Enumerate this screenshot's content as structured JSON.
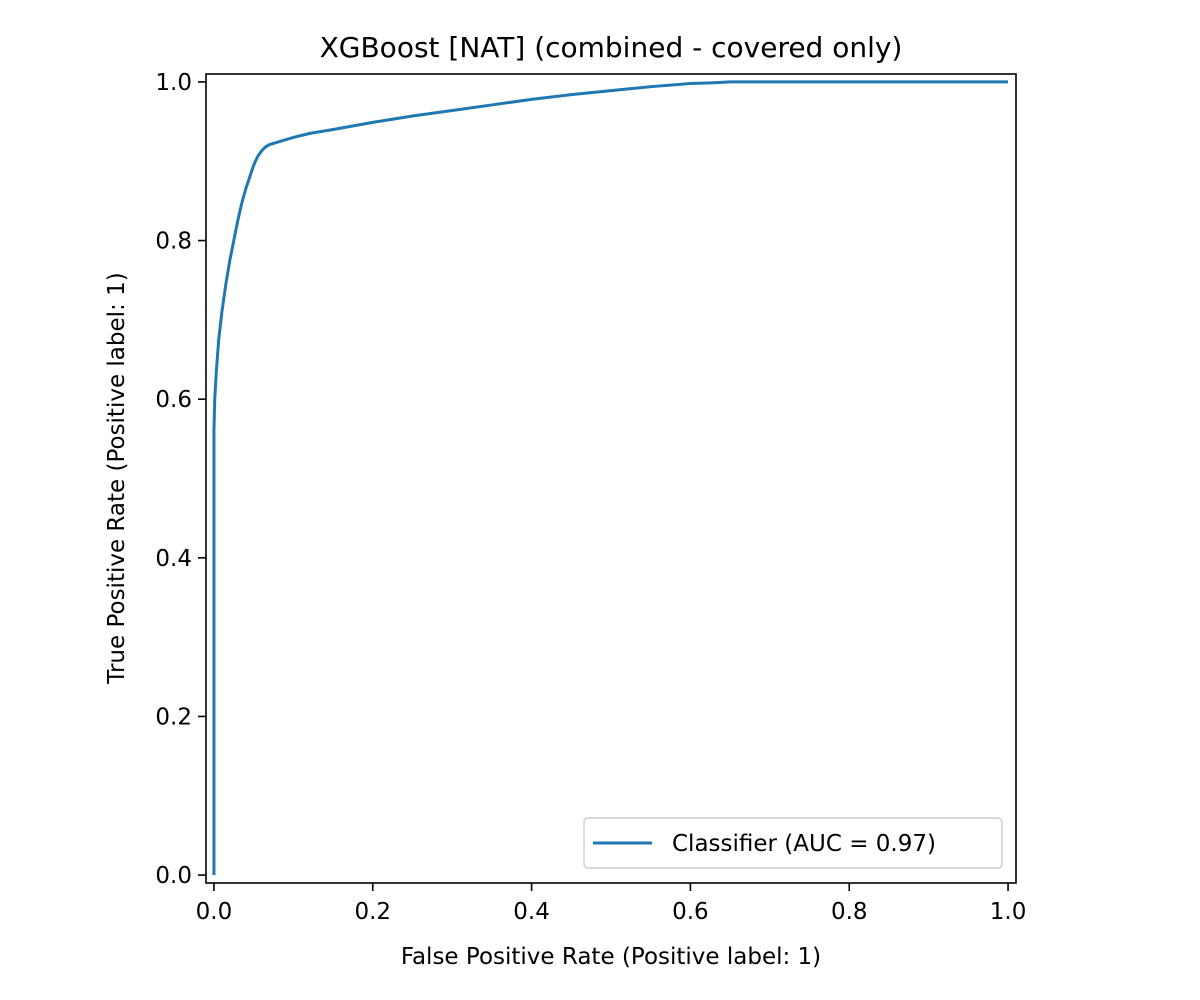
{
  "chart_data": {
    "type": "line",
    "title": "XGBoost [NAT] (combined - covered only)",
    "xlabel": "False Positive Rate (Positive label: 1)",
    "ylabel": "True Positive Rate (Positive label: 1)",
    "xlim": [
      -0.01,
      1.01
    ],
    "ylim": [
      -0.01,
      1.01
    ],
    "xticks": [
      0.0,
      0.2,
      0.4,
      0.6,
      0.8,
      1.0
    ],
    "xtick_labels": [
      "0.0",
      "0.2",
      "0.4",
      "0.6",
      "0.8",
      "1.0"
    ],
    "yticks": [
      0.0,
      0.2,
      0.4,
      0.6,
      0.8,
      1.0
    ],
    "ytick_labels": [
      "0.0",
      "0.2",
      "0.4",
      "0.6",
      "0.8",
      "1.0"
    ],
    "grid": false,
    "legend_position": "lower-right",
    "series": [
      {
        "name": "Classifier (AUC = 0.97)",
        "color": "#1f77b4",
        "x": [
          0.0,
          0.0,
          0.001,
          0.003,
          0.006,
          0.01,
          0.015,
          0.02,
          0.025,
          0.03,
          0.035,
          0.04,
          0.045,
          0.05,
          0.055,
          0.06,
          0.065,
          0.07,
          0.08,
          0.1,
          0.12,
          0.15,
          0.2,
          0.25,
          0.3,
          0.35,
          0.4,
          0.45,
          0.5,
          0.55,
          0.6,
          0.63,
          0.65,
          0.7,
          0.8,
          0.9,
          1.0
        ],
        "y": [
          0.0,
          0.56,
          0.6,
          0.635,
          0.675,
          0.71,
          0.745,
          0.775,
          0.8,
          0.825,
          0.847,
          0.865,
          0.88,
          0.895,
          0.906,
          0.913,
          0.918,
          0.921,
          0.924,
          0.93,
          0.935,
          0.94,
          0.949,
          0.957,
          0.964,
          0.971,
          0.978,
          0.984,
          0.989,
          0.994,
          0.998,
          0.999,
          1.0,
          1.0,
          1.0,
          1.0,
          1.0
        ]
      }
    ]
  }
}
